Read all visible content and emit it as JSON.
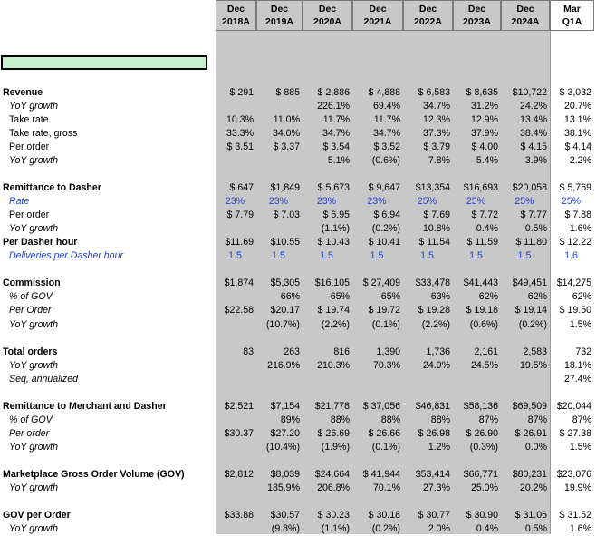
{
  "columns": [
    {
      "l1": "Dec",
      "l2": "2018A"
    },
    {
      "l1": "Dec",
      "l2": "2019A"
    },
    {
      "l1": "Dec",
      "l2": "2020A"
    },
    {
      "l1": "Dec",
      "l2": "2021A"
    },
    {
      "l1": "Dec",
      "l2": "2022A"
    },
    {
      "l1": "Dec",
      "l2": "2023A"
    },
    {
      "l1": "Dec",
      "l2": "2024A"
    },
    {
      "l1": "Mar",
      "l2": "Q1A"
    }
  ],
  "rows": [
    {
      "label": "Revenue",
      "style": "b",
      "blue": false,
      "cells": [
        "$ 291",
        "$ 885",
        "$ 2,886",
        "$ 4,888",
        "$ 6,583",
        "$ 8,635",
        "$10,722",
        "$ 3,032"
      ]
    },
    {
      "label": "YoY growth",
      "style": "i",
      "blue": false,
      "cells": [
        "",
        "",
        "226.1%",
        "69.4%",
        "34.7%",
        "31.2%",
        "24.2%",
        "20.7%"
      ]
    },
    {
      "label": "Take rate",
      "style": "s",
      "blue": false,
      "cells": [
        "10.3%",
        "11.0%",
        "11.7%",
        "11.7%",
        "12.3%",
        "12.9%",
        "13.4%",
        "13.1%"
      ]
    },
    {
      "label": "Take rate, gross",
      "style": "s",
      "blue": false,
      "cells": [
        "33.3%",
        "34.0%",
        "34.7%",
        "34.7%",
        "37.3%",
        "37.9%",
        "38.4%",
        "38.1%"
      ]
    },
    {
      "label": "Per order",
      "style": "s",
      "blue": false,
      "cells": [
        "$ 3.51",
        "$ 3.37",
        "$ 3.54",
        "$ 3.52",
        "$ 3.79",
        "$ 4.00",
        "$ 4.15",
        "$ 4.14"
      ]
    },
    {
      "label": "YoY growth",
      "style": "i",
      "blue": false,
      "cells": [
        "",
        "",
        "5.1%",
        "(0.6%)",
        "7.8%",
        "5.4%",
        "3.9%",
        "2.2%"
      ]
    },
    {
      "label": "",
      "style": "s",
      "blue": false,
      "cells": [
        "",
        "",
        "",
        "",
        "",
        "",
        "",
        ""
      ]
    },
    {
      "label": "Remittance to Dasher",
      "style": "b",
      "blue": false,
      "cells": [
        "$ 647",
        "$1,849",
        "$ 5,673",
        "$ 9,647",
        "$13,354",
        "$16,693",
        "$20,058",
        "$ 5,769"
      ]
    },
    {
      "label": "Rate",
      "style": "i",
      "blue": true,
      "cells": [
        "23%",
        "23%",
        "23%",
        "23%",
        "25%",
        "25%",
        "25%",
        "25%"
      ]
    },
    {
      "label": "Per order",
      "style": "s",
      "blue": false,
      "cells": [
        "$ 7.79",
        "$ 7.03",
        "$ 6.95",
        "$ 6.94",
        "$ 7.69",
        "$ 7.72",
        "$ 7.77",
        "$ 7.88"
      ]
    },
    {
      "label": "YoY growth",
      "style": "i",
      "blue": false,
      "cells": [
        "",
        "",
        "(1.1%)",
        "(0.2%)",
        "10.8%",
        "0.4%",
        "0.5%",
        "1.6%"
      ]
    },
    {
      "label": "Per Dasher hour",
      "style": "b",
      "blue": false,
      "cells": [
        "$11.69",
        "$10.55",
        "$ 10.43",
        "$ 10.41",
        "$ 11.54",
        "$ 11.59",
        "$ 11.80",
        "$ 12.22"
      ]
    },
    {
      "label": "Deliveries per Dasher hour",
      "style": "i",
      "blue": true,
      "cells": [
        "1.5",
        "1.5",
        "1.5",
        "1.5",
        "1.5",
        "1.5",
        "1.5",
        "1.6"
      ]
    },
    {
      "label": "",
      "style": "s",
      "blue": false,
      "cells": [
        "",
        "",
        "",
        "",
        "",
        "",
        "",
        ""
      ]
    },
    {
      "label": "Commission",
      "style": "b",
      "blue": false,
      "cells": [
        "$1,874",
        "$5,305",
        "$16,105",
        "$ 27,409",
        "$33,478",
        "$41,443",
        "$49,451",
        "$14,275"
      ]
    },
    {
      "label": "% of GOV",
      "style": "i",
      "blue": false,
      "cells": [
        "",
        "66%",
        "65%",
        "65%",
        "63%",
        "62%",
        "62%",
        "62%"
      ]
    },
    {
      "label": "Per Order",
      "style": "i",
      "blue": false,
      "cells": [
        "$22.58",
        "$20.17",
        "$ 19.74",
        "$ 19.72",
        "$ 19.28",
        "$ 19.18",
        "$ 19.14",
        "$ 19.50"
      ]
    },
    {
      "label": "YoY growth",
      "style": "i",
      "blue": false,
      "cells": [
        "",
        "(10.7%)",
        "(2.2%)",
        "(0.1%)",
        "(2.2%)",
        "(0.6%)",
        "(0.2%)",
        "1.5%"
      ]
    },
    {
      "label": "",
      "style": "s",
      "blue": false,
      "cells": [
        "",
        "",
        "",
        "",
        "",
        "",
        "",
        ""
      ]
    },
    {
      "label": "Total orders",
      "style": "b",
      "blue": false,
      "cells": [
        "83",
        "263",
        "816",
        "1,390",
        "1,736",
        "2,161",
        "2,583",
        "732"
      ]
    },
    {
      "label": "YoY growth",
      "style": "i",
      "blue": false,
      "cells": [
        "",
        "216.9%",
        "210.3%",
        "70.3%",
        "24.9%",
        "24.5%",
        "19.5%",
        "18.1%"
      ]
    },
    {
      "label": "Seq, annualized",
      "style": "i",
      "blue": false,
      "cells": [
        "",
        "",
        "",
        "",
        "",
        "",
        "",
        "27.4%"
      ]
    },
    {
      "label": "",
      "style": "s",
      "blue": false,
      "cells": [
        "",
        "",
        "",
        "",
        "",
        "",
        "",
        ""
      ]
    },
    {
      "label": "Remittance to Merchant and Dasher",
      "style": "b",
      "blue": false,
      "cells": [
        "$2,521",
        "$7,154",
        "$21,778",
        "$ 37,056",
        "$46,831",
        "$58,136",
        "$69,509",
        "$20,044"
      ]
    },
    {
      "label": "% of GOV",
      "style": "i",
      "blue": false,
      "cells": [
        "",
        "89%",
        "88%",
        "88%",
        "88%",
        "87%",
        "87%",
        "87%"
      ]
    },
    {
      "label": "Per order",
      "style": "i",
      "blue": false,
      "cells": [
        "$30.37",
        "$27.20",
        "$ 26.69",
        "$ 26.66",
        "$ 26.98",
        "$ 26.90",
        "$ 26.91",
        "$ 27.38"
      ]
    },
    {
      "label": "YoY growth",
      "style": "i",
      "blue": false,
      "cells": [
        "",
        "(10.4%)",
        "(1.9%)",
        "(0.1%)",
        "1.2%",
        "(0.3%)",
        "0.0%",
        "1.5%"
      ]
    },
    {
      "label": "",
      "style": "s",
      "blue": false,
      "cells": [
        "",
        "",
        "",
        "",
        "",
        "",
        "",
        ""
      ]
    },
    {
      "label": "Marketplace Gross Order Volume (GOV)",
      "style": "b",
      "blue": false,
      "cells": [
        "$2,812",
        "$8,039",
        "$24,664",
        "$ 41,944",
        "$53,414",
        "$66,771",
        "$80,231",
        "$23,076"
      ]
    },
    {
      "label": "YoY growth",
      "style": "i",
      "blue": false,
      "cells": [
        "",
        "185.9%",
        "206.8%",
        "70.1%",
        "27.3%",
        "25.0%",
        "20.2%",
        "19.9%"
      ]
    },
    {
      "label": "",
      "style": "s",
      "blue": false,
      "cells": [
        "",
        "",
        "",
        "",
        "",
        "",
        "",
        ""
      ]
    },
    {
      "label": "GOV per Order",
      "style": "b",
      "blue": false,
      "cells": [
        "$33.88",
        "$30.57",
        "$ 30.23",
        "$ 30.18",
        "$ 30.77",
        "$ 30.90",
        "$ 31.06",
        "$ 31.52"
      ]
    },
    {
      "label": "YoY growth",
      "style": "i",
      "blue": false,
      "cells": [
        "",
        "(9.8%)",
        "(1.1%)",
        "(0.2%)",
        "2.0%",
        "0.4%",
        "0.5%",
        "1.6%"
      ]
    }
  ],
  "colors": {
    "shaded_column": "#c8c8c8",
    "blue_text": "#1f3fd6",
    "highlight_cell": "#c6efce"
  }
}
